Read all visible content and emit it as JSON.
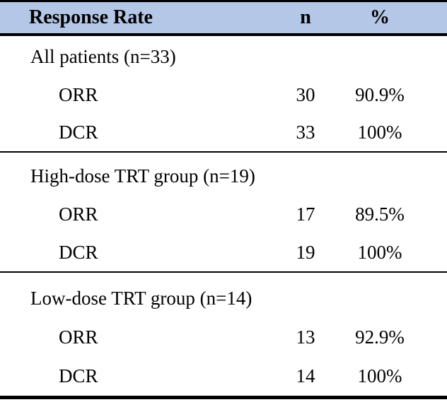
{
  "table": {
    "title": "Response Rate table",
    "header": {
      "label": "Response Rate",
      "n": "n",
      "pct": "%"
    },
    "colors": {
      "header_bg": "#b4c7e7",
      "border": "#000000",
      "text": "#000000"
    },
    "sections": [
      {
        "group": "All patients (n=33)",
        "rows": [
          {
            "label": "ORR",
            "n": "30",
            "pct": "90.9%"
          },
          {
            "label": "DCR",
            "n": "33",
            "pct": "100%"
          }
        ]
      },
      {
        "group": "High-dose TRT group (n=19)",
        "rows": [
          {
            "label": "ORR",
            "n": "17",
            "pct": "89.5%"
          },
          {
            "label": "DCR",
            "n": "19",
            "pct": "100%"
          }
        ]
      },
      {
        "group": "Low-dose TRT group (n=14)",
        "rows": [
          {
            "label": "ORR",
            "n": "13",
            "pct": "92.9%"
          },
          {
            "label": "DCR",
            "n": "14",
            "pct": "100%"
          }
        ]
      }
    ]
  }
}
